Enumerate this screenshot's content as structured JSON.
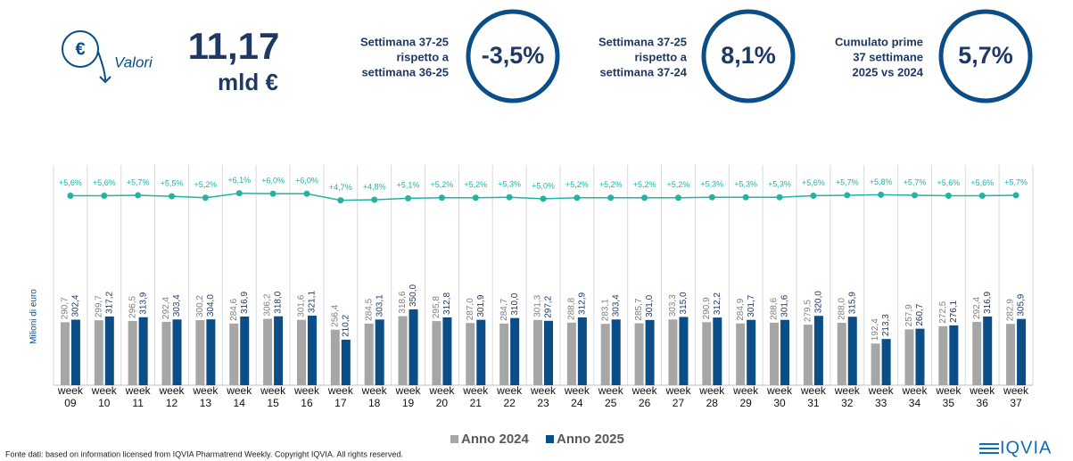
{
  "header": {
    "unit_label": "Valori",
    "total": "11,17",
    "total_unit": "mld €"
  },
  "kpis": [
    {
      "label_lines": [
        "Settimana 37-25",
        "rispetto a",
        "settimana 36-25"
      ],
      "value": "-3,5%"
    },
    {
      "label_lines": [
        "Settimana 37-25",
        "rispetto a",
        "settimana 37-24"
      ],
      "value": "8,1%"
    },
    {
      "label_lines": [
        "Cumulato prime",
        "37 settimane",
        "2025 vs 2024"
      ],
      "value": "5,7%"
    }
  ],
  "footnote": "Fonte dati: based on information licensed from IQVIA Pharmatrend Weekly. Copyright IQVIA. All rights reserved.",
  "logo": "IQVIA",
  "chart_data": {
    "type": "combo",
    "y_label": "Milioni di euro",
    "categories": [
      "week 09",
      "week 10",
      "week 11",
      "week 12",
      "week 13",
      "week 14",
      "week 15",
      "week 16",
      "week 17",
      "week 18",
      "week 19",
      "week 20",
      "week 21",
      "week 22",
      "week 23",
      "week 24",
      "week 25",
      "week 26",
      "week 27",
      "week 28",
      "week 29",
      "week 30",
      "week 31",
      "week 32",
      "week 33",
      "week 34",
      "week 35",
      "week 36",
      "week 37"
    ],
    "ylim": [
      0,
      1000
    ],
    "y2lim": [
      -32,
      11
    ],
    "series": [
      {
        "name": "Anno 2024",
        "type": "bar",
        "color": "#a6a6a6",
        "values": [
          290.7,
          299.7,
          296.5,
          292.4,
          300.2,
          284.6,
          306.2,
          301.6,
          256.4,
          284.5,
          318.6,
          295.8,
          287.0,
          284.7,
          301.3,
          288.8,
          283.1,
          285.7,
          303.3,
          290.9,
          284.9,
          288.6,
          279.5,
          288.0,
          192.4,
          257.9,
          272.5,
          292.4,
          282.9
        ],
        "value_labels": [
          "290,7",
          "299,7",
          "296,5",
          "292,4",
          "300,2",
          "284,6",
          "306,2",
          "301,6",
          "256,4",
          "284,5",
          "318,6",
          "295,8",
          "287,0",
          "284,7",
          "301,3",
          "288,8",
          "283,1",
          "285,7",
          "303,3",
          "290,9",
          "284,9",
          "288,6",
          "279,5",
          "288,0",
          "192,4",
          "257,9",
          "272,5",
          "292,4",
          "282,9"
        ]
      },
      {
        "name": "Anno 2025",
        "type": "bar",
        "color": "#0b4d86",
        "values": [
          302.4,
          317.2,
          313.9,
          303.4,
          304.0,
          316.9,
          318.0,
          321.1,
          210.2,
          303.1,
          350.0,
          312.8,
          301.9,
          310.0,
          297.2,
          312.9,
          303.4,
          301.0,
          315.0,
          312.2,
          301.7,
          301.6,
          320.0,
          315.9,
          213.3,
          260.7,
          276.1,
          316.9,
          305.9
        ],
        "value_labels": [
          "302,4",
          "317,2",
          "313,9",
          "303,4",
          "304,0",
          "316,9",
          "318,0",
          "321,1",
          "210,2",
          "303,1",
          "350,0",
          "312,8",
          "301,9",
          "310,0",
          "297,2",
          "312,9",
          "303,4",
          "301,0",
          "315,0",
          "312,2",
          "301,7",
          "301,6",
          "320,0",
          "315,9",
          "213,3",
          "260,7",
          "276,1",
          "316,9",
          "305,9"
        ]
      },
      {
        "type": "line",
        "axis": "y2",
        "color": "#22b3a3",
        "values": [
          5.6,
          5.6,
          5.7,
          5.5,
          5.2,
          6.1,
          6.0,
          6.0,
          4.7,
          4.8,
          5.1,
          5.2,
          5.2,
          5.3,
          5.0,
          5.2,
          5.2,
          5.2,
          5.2,
          5.3,
          5.3,
          5.3,
          5.6,
          5.7,
          5.8,
          5.7,
          5.6,
          5.6,
          5.7
        ],
        "value_labels": [
          "+5,6%",
          "+5,6%",
          "+5,7%",
          "+5,5%",
          "+5,2%",
          "+6,1%",
          "+6,0%",
          "+6,0%",
          "+4,7%",
          "+4,8%",
          "+5,1%",
          "+5,2%",
          "+5,2%",
          "+5,3%",
          "+5,0%",
          "+5,2%",
          "+5,2%",
          "+5,2%",
          "+5,2%",
          "+5,3%",
          "+5,3%",
          "+5,3%",
          "+5,6%",
          "+5,7%",
          "+5,8%",
          "+5,7%",
          "+5,6%",
          "+5,6%",
          "+5,7%"
        ]
      }
    ]
  }
}
